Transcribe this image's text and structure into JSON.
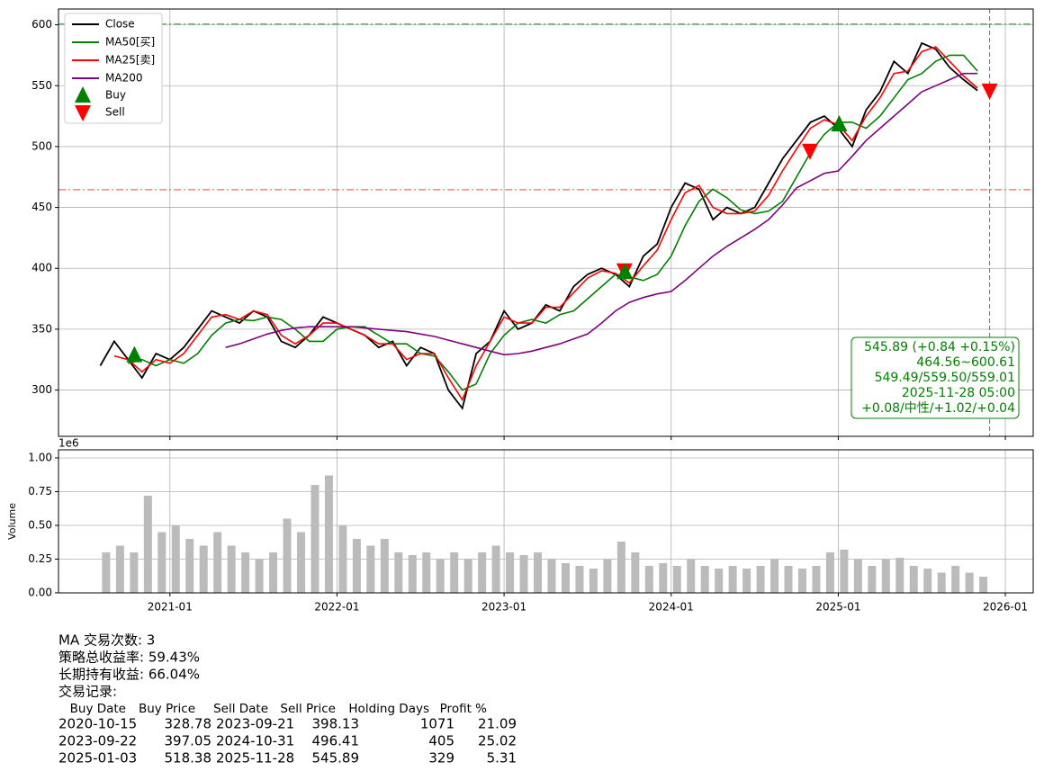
{
  "chart_data": [
    {
      "type": "line",
      "legend": "upper left",
      "grid": true,
      "x": [
        "2020-08",
        "2020-09",
        "2020-10",
        "2020-11",
        "2020-12",
        "2021-01",
        "2021-02",
        "2021-03",
        "2021-04",
        "2021-05",
        "2021-06",
        "2021-07",
        "2021-08",
        "2021-09",
        "2021-10",
        "2021-11",
        "2021-12",
        "2022-01",
        "2022-02",
        "2022-03",
        "2022-04",
        "2022-05",
        "2022-06",
        "2022-07",
        "2022-08",
        "2022-09",
        "2022-10",
        "2022-11",
        "2022-12",
        "2023-01",
        "2023-02",
        "2023-03",
        "2023-04",
        "2023-05",
        "2023-06",
        "2023-07",
        "2023-08",
        "2023-09",
        "2023-10",
        "2023-11",
        "2023-12",
        "2024-01",
        "2024-02",
        "2024-03",
        "2024-04",
        "2024-05",
        "2024-06",
        "2024-07",
        "2024-08",
        "2024-09",
        "2024-10",
        "2024-11",
        "2024-12",
        "2025-01",
        "2025-02",
        "2025-03",
        "2025-04",
        "2025-05",
        "2025-06",
        "2025-07",
        "2025-08",
        "2025-09",
        "2025-10",
        "2025-11"
      ],
      "series": [
        {
          "name": "Close",
          "color": "#000000",
          "values": [
            320,
            340,
            325,
            310,
            330,
            325,
            335,
            350,
            365,
            360,
            355,
            365,
            360,
            340,
            335,
            345,
            360,
            355,
            350,
            345,
            335,
            340,
            320,
            335,
            330,
            300,
            285,
            330,
            340,
            365,
            350,
            355,
            370,
            365,
            385,
            395,
            400,
            395,
            385,
            410,
            420,
            450,
            470,
            465,
            440,
            450,
            445,
            450,
            470,
            490,
            505,
            520,
            525,
            515,
            500,
            530,
            545,
            570,
            560,
            585,
            580,
            565,
            555,
            546
          ]
        },
        {
          "name": "MA50[买]",
          "color": "#008000",
          "values": [
            null,
            null,
            322,
            325,
            320,
            325,
            322,
            330,
            345,
            355,
            358,
            357,
            360,
            358,
            350,
            340,
            340,
            350,
            352,
            352,
            345,
            338,
            338,
            330,
            328,
            315,
            300,
            305,
            330,
            345,
            355,
            358,
            355,
            362,
            365,
            375,
            385,
            395,
            393,
            390,
            395,
            410,
            435,
            455,
            465,
            458,
            448,
            445,
            447,
            455,
            475,
            495,
            510,
            520,
            520,
            515,
            525,
            540,
            555,
            560,
            570,
            575,
            575,
            562
          ]
        },
        {
          "name": "MA25[卖]",
          "color": "#ff0000",
          "values": [
            null,
            328,
            325,
            315,
            325,
            322,
            330,
            345,
            360,
            362,
            358,
            365,
            362,
            345,
            338,
            345,
            355,
            355,
            350,
            345,
            338,
            338,
            325,
            330,
            330,
            310,
            292,
            320,
            340,
            360,
            355,
            355,
            368,
            368,
            380,
            392,
            398,
            396,
            388,
            402,
            415,
            440,
            462,
            468,
            450,
            445,
            445,
            447,
            460,
            480,
            498,
            515,
            522,
            518,
            505,
            525,
            540,
            560,
            562,
            578,
            582,
            570,
            558,
            548
          ]
        },
        {
          "name": "MA200",
          "color": "#800080",
          "values": [
            null,
            null,
            null,
            null,
            null,
            null,
            null,
            null,
            null,
            335,
            338,
            342,
            346,
            349,
            351,
            352,
            352,
            352,
            352,
            351,
            350,
            349,
            348,
            346,
            344,
            341,
            338,
            335,
            332,
            329,
            330,
            332,
            335,
            338,
            342,
            346,
            355,
            365,
            372,
            376,
            379,
            381,
            390,
            400,
            410,
            418,
            425,
            432,
            440,
            452,
            466,
            472,
            478,
            480,
            492,
            505,
            515,
            525,
            535,
            545,
            550,
            555,
            560,
            560
          ]
        }
      ],
      "markers": [
        {
          "name": "Buy",
          "color": "#008000"
        },
        {
          "name": "Sell",
          "color": "#ff0000"
        }
      ],
      "hlines": [
        {
          "value": 600.61,
          "color": "#2ca02c"
        },
        {
          "value": 464.56,
          "color": "#ff4444"
        }
      ],
      "vline": "2025-11-28",
      "annotation": [
        "545.89 (+0.84 +0.15%)",
        "464.56~600.61",
        "549.49/559.50/559.01",
        "2025-11-28 05:00",
        "+0.08/中性/+1.02/+0.04"
      ],
      "xlim": [
        "2020-05",
        "2026-03"
      ],
      "ylim": [
        262,
        613
      ],
      "xticks": [
        "2021-01",
        "2022-01",
        "2023-01",
        "2024-01",
        "2025-01",
        "2026-01"
      ],
      "yticks": [
        300,
        350,
        400,
        450,
        500,
        550,
        600
      ]
    },
    {
      "type": "bar",
      "grid": true,
      "ylabel": "Volume",
      "offset_label": "1e6",
      "color": "#bbbbbb",
      "x": [
        "2020-08",
        "2020-09",
        "2020-10",
        "2020-11",
        "2020-12",
        "2021-01",
        "2021-02",
        "2021-03",
        "2021-04",
        "2021-05",
        "2021-06",
        "2021-07",
        "2021-08",
        "2021-09",
        "2021-10",
        "2021-11",
        "2021-12",
        "2022-01",
        "2022-02",
        "2022-03",
        "2022-04",
        "2022-05",
        "2022-06",
        "2022-07",
        "2022-08",
        "2022-09",
        "2022-10",
        "2022-11",
        "2022-12",
        "2023-01",
        "2023-02",
        "2023-03",
        "2023-04",
        "2023-05",
        "2023-06",
        "2023-07",
        "2023-08",
        "2023-09",
        "2023-10",
        "2023-11",
        "2023-12",
        "2024-01",
        "2024-02",
        "2024-03",
        "2024-04",
        "2024-05",
        "2024-06",
        "2024-07",
        "2024-08",
        "2024-09",
        "2024-10",
        "2024-11",
        "2024-12",
        "2025-01",
        "2025-02",
        "2025-03",
        "2025-04",
        "2025-05",
        "2025-06",
        "2025-07",
        "2025-08",
        "2025-09",
        "2025-10",
        "2025-11"
      ],
      "values": [
        0.3,
        0.35,
        0.3,
        0.72,
        0.45,
        0.5,
        0.4,
        0.35,
        0.45,
        0.35,
        0.3,
        0.25,
        0.3,
        0.55,
        0.45,
        0.8,
        0.87,
        0.5,
        0.4,
        0.35,
        0.4,
        0.3,
        0.28,
        0.3,
        0.25,
        0.3,
        0.25,
        0.3,
        0.35,
        0.3,
        0.28,
        0.3,
        0.25,
        0.22,
        0.2,
        0.18,
        0.25,
        0.38,
        0.3,
        0.2,
        0.22,
        0.2,
        0.25,
        0.2,
        0.18,
        0.2,
        0.18,
        0.2,
        0.25,
        0.2,
        0.18,
        0.2,
        0.3,
        0.32,
        0.25,
        0.2,
        0.25,
        0.26,
        0.2,
        0.18,
        0.15,
        0.2,
        0.15,
        0.12
      ],
      "xlim": [
        "2020-05",
        "2026-03"
      ],
      "ylim": [
        0,
        1.06
      ],
      "xticks": [
        "2021-01",
        "2022-01",
        "2023-01",
        "2024-01",
        "2025-01",
        "2026-01"
      ],
      "yticks": [
        {
          "value": 0,
          "label": "0.00"
        },
        0.25,
        {
          "value": 0.5,
          "label": "0.50"
        },
        0.75,
        {
          "value": 1,
          "label": "1.00"
        }
      ]
    }
  ],
  "report": [
    "MA 交易次数: 3",
    "策略总收益率: 59.43%",
    "长期持有收益: 66.04%",
    "交易记录:"
  ],
  "trade_table": {
    "columns": [
      "Buy Date",
      "Buy Price",
      "Sell Date",
      "Sell Price",
      "Holding Days",
      "Profit %"
    ],
    "rows": [
      [
        "2020-10-15",
        328.78,
        "2023-09-21",
        398.13,
        1071,
        21.09
      ],
      [
        "2023-09-22",
        397.05,
        "2024-10-31",
        496.41,
        405,
        25.02
      ],
      [
        "2025-01-03",
        518.38,
        "2025-11-28",
        545.89,
        329,
        5.31
      ]
    ]
  }
}
